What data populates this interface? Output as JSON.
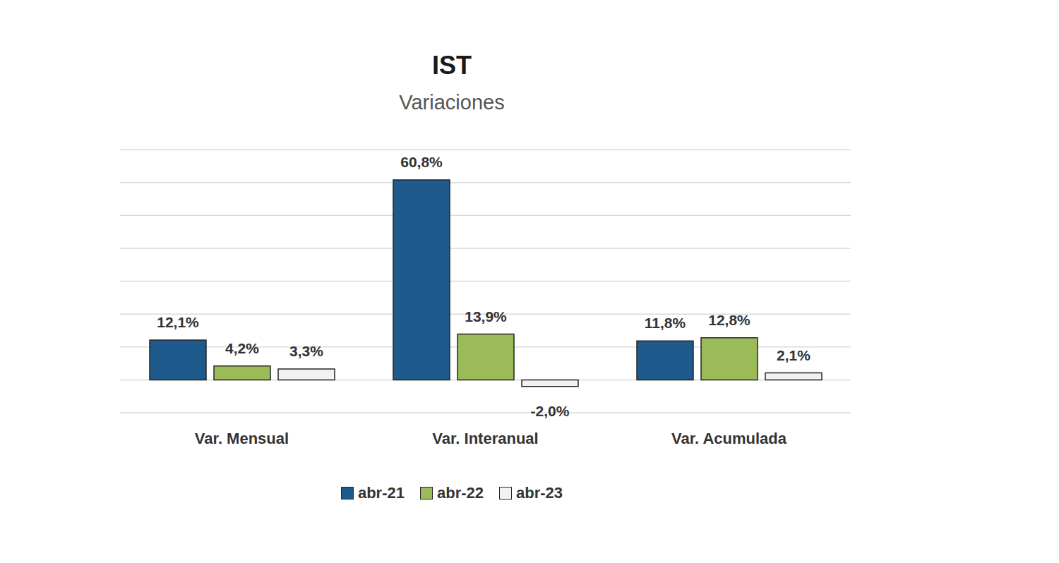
{
  "chart_data": {
    "type": "bar",
    "title": "IST",
    "subtitle": "Variaciones",
    "categories": [
      "Var. Mensual",
      "Var. Interanual",
      "Var. Acumulada"
    ],
    "series": [
      {
        "name": "abr-21",
        "color": "#1f5a8c",
        "values": [
          12.1,
          60.8,
          11.8
        ],
        "value_labels": [
          "12,1%",
          "60,8%",
          "11,8%"
        ]
      },
      {
        "name": "abr-22",
        "color": "#9bbb59",
        "values": [
          4.2,
          13.9,
          12.8
        ],
        "value_labels": [
          "4,2%",
          "13,9%",
          "12,8%"
        ]
      },
      {
        "name": "abr-23",
        "color": "#f2f2f2",
        "values": [
          3.3,
          -2.0,
          2.1
        ],
        "value_labels": [
          "3,3%",
          "-2,0%",
          "2,1%"
        ]
      }
    ],
    "ylim": [
      -10,
      70
    ],
    "yticks": [
      -10,
      0,
      10,
      20,
      30,
      40,
      50,
      60,
      70
    ],
    "grid": true,
    "legend": "bottom",
    "data_labels": true,
    "tick_labels": "x"
  }
}
